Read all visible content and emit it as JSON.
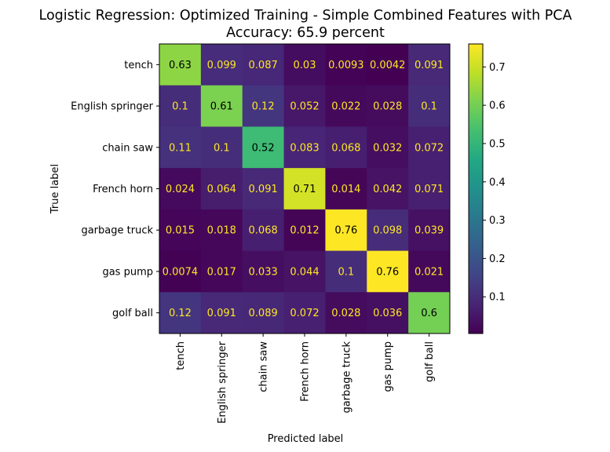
{
  "chart_data": {
    "type": "heatmap",
    "title": "Logistic Regression: Optimized Training - Simple Combined Features with PCA",
    "subtitle": "Accuracy: 65.9 percent",
    "xlabel": "Predicted label",
    "ylabel": "True label",
    "x_categories": [
      "tench",
      "English springer",
      "chain saw",
      "French horn",
      "garbage truck",
      "gas pump",
      "golf ball"
    ],
    "y_categories": [
      "tench",
      "English springer",
      "chain saw",
      "French horn",
      "garbage truck",
      "gas pump",
      "golf ball"
    ],
    "values": [
      [
        0.63,
        0.099,
        0.087,
        0.03,
        0.0093,
        0.0042,
        0.091
      ],
      [
        0.1,
        0.61,
        0.12,
        0.052,
        0.022,
        0.028,
        0.1
      ],
      [
        0.11,
        0.1,
        0.52,
        0.083,
        0.068,
        0.032,
        0.072
      ],
      [
        0.024,
        0.064,
        0.091,
        0.71,
        0.014,
        0.042,
        0.071
      ],
      [
        0.015,
        0.018,
        0.068,
        0.012,
        0.76,
        0.098,
        0.039
      ],
      [
        0.0074,
        0.017,
        0.033,
        0.044,
        0.1,
        0.76,
        0.021
      ],
      [
        0.12,
        0.091,
        0.089,
        0.072,
        0.028,
        0.036,
        0.6
      ]
    ],
    "cell_labels": [
      [
        "0.63",
        "0.099",
        "0.087",
        "0.03",
        "0.0093",
        "0.0042",
        "0.091"
      ],
      [
        "0.1",
        "0.61",
        "0.12",
        "0.052",
        "0.022",
        "0.028",
        "0.1"
      ],
      [
        "0.11",
        "0.1",
        "0.52",
        "0.083",
        "0.068",
        "0.032",
        "0.072"
      ],
      [
        "0.024",
        "0.064",
        "0.091",
        "0.71",
        "0.014",
        "0.042",
        "0.071"
      ],
      [
        "0.015",
        "0.018",
        "0.068",
        "0.012",
        "0.76",
        "0.098",
        "0.039"
      ],
      [
        "0.0074",
        "0.017",
        "0.033",
        "0.044",
        "0.1",
        "0.76",
        "0.021"
      ],
      [
        "0.12",
        "0.091",
        "0.089",
        "0.072",
        "0.028",
        "0.036",
        "0.6"
      ]
    ],
    "colormap": "viridis",
    "colorbar": {
      "range": [
        0.0042,
        0.76
      ],
      "ticks": [
        0.1,
        0.2,
        0.3,
        0.4,
        0.5,
        0.6,
        0.7
      ],
      "tick_labels": [
        "0.1",
        "0.2",
        "0.3",
        "0.4",
        "0.5",
        "0.6",
        "0.7"
      ]
    },
    "text_colors": {
      "dark_cell_text": "#fde725",
      "light_cell_text": "#000000"
    },
    "grid": false
  }
}
